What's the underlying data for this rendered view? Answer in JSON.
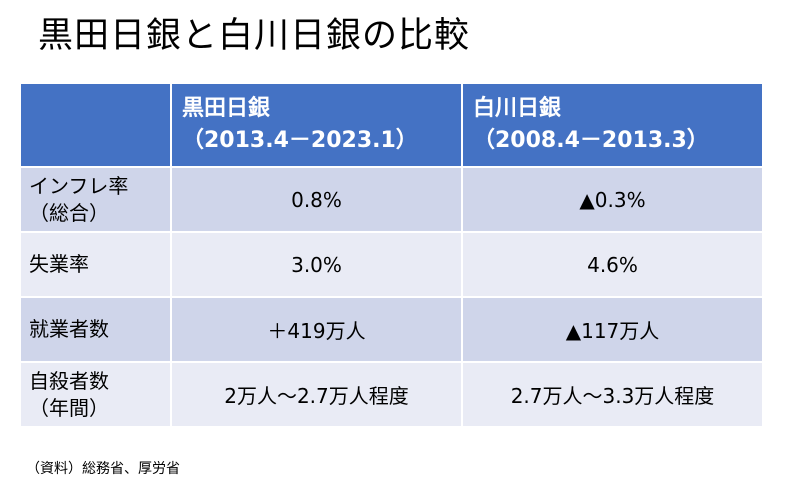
{
  "title": "黒田日銀と白川日銀の比較",
  "table": {
    "headers": [
      {
        "line1": "",
        "line2": ""
      },
      {
        "line1": "黒田日銀",
        "line2": "（2013.4－2023.1）"
      },
      {
        "line1": "白川日銀",
        "line2": "（2008.4－2013.3）"
      }
    ],
    "rows": [
      {
        "label_line1": "インフレ率",
        "label_line2": "（総合）",
        "kuroda": "0.8%",
        "shirakawa": "▲0.3%"
      },
      {
        "label_line1": "失業率",
        "label_line2": "",
        "kuroda": "3.0%",
        "shirakawa": "4.6%"
      },
      {
        "label_line1": "就業者数",
        "label_line2": "",
        "kuroda": "＋419万人",
        "shirakawa": "▲117万人"
      },
      {
        "label_line1": "自殺者数",
        "label_line2": "（年間）",
        "kuroda": "2万人～2.7万人程度",
        "shirakawa": "2.7万人～3.3万人程度"
      }
    ]
  },
  "source": "（資料）総務省、厚労省",
  "colors": {
    "header_bg": "#4472c4",
    "row_odd_bg": "#cfd5ea",
    "row_even_bg": "#e9ebf5"
  }
}
